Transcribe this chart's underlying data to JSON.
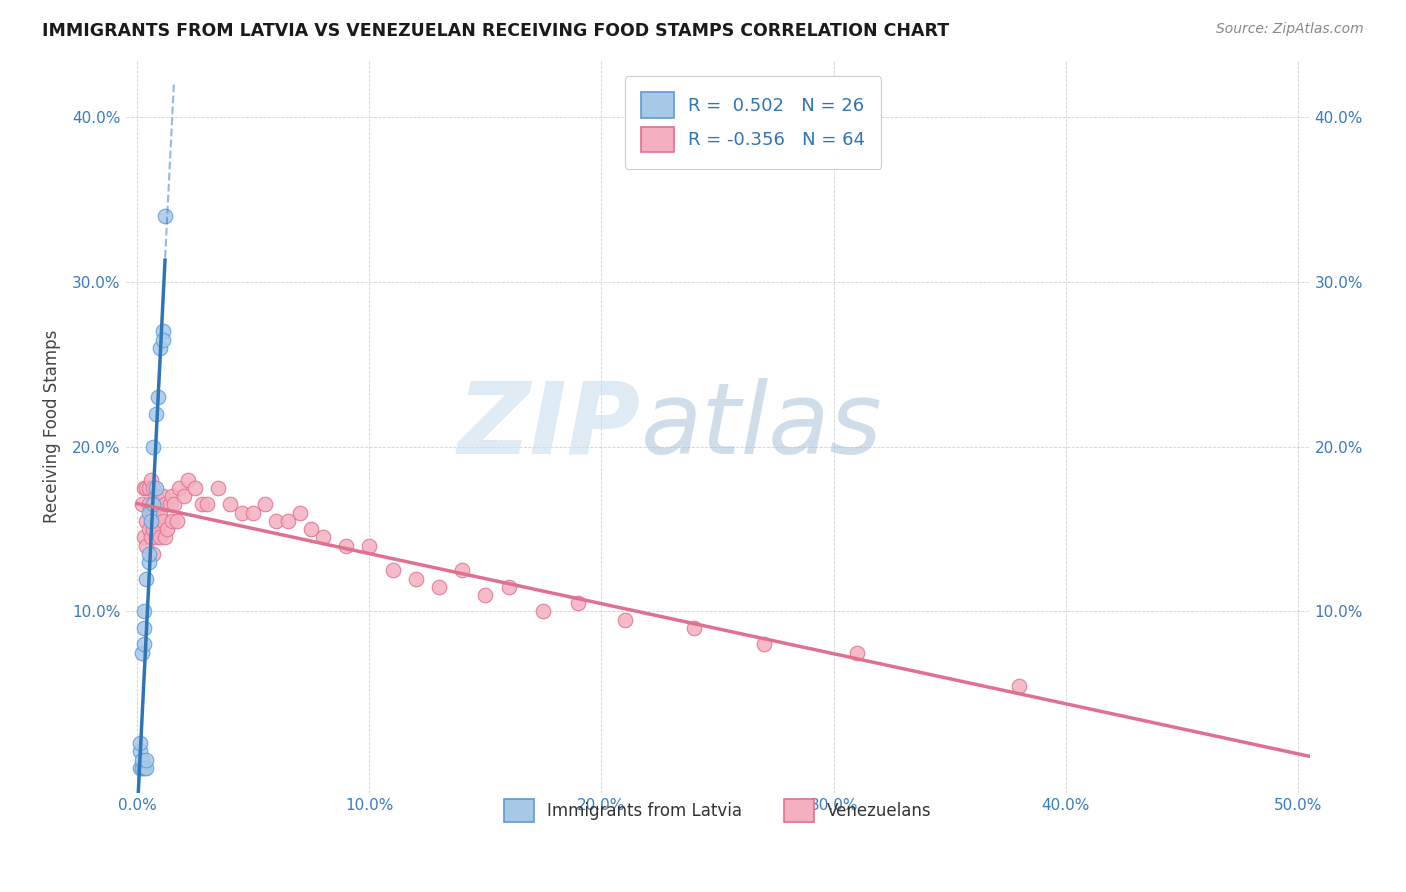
{
  "title": "IMMIGRANTS FROM LATVIA VS VENEZUELAN RECEIVING FOOD STAMPS CORRELATION CHART",
  "source": "Source: ZipAtlas.com",
  "ylabel": "Receiving Food Stamps",
  "xlim": [
    -0.005,
    0.505
  ],
  "ylim": [
    -0.01,
    0.435
  ],
  "xticks": [
    0.0,
    0.1,
    0.2,
    0.3,
    0.4,
    0.5
  ],
  "xtick_labels": [
    "0.0%",
    "10.0%",
    "20.0%",
    "30.0%",
    "40.0%",
    "50.0%"
  ],
  "yticks": [
    0.1,
    0.2,
    0.3,
    0.4
  ],
  "ytick_labels": [
    "10.0%",
    "20.0%",
    "30.0%",
    "40.0%"
  ],
  "latvia_color": "#a8c8e8",
  "venezuela_color": "#f4b0c0",
  "latvia_edge": "#5b9bd5",
  "venezuela_edge": "#e07090",
  "trendline_latvia_color": "#2e75b6",
  "trendline_venezuela_color": "#e07090",
  "r_latvia": 0.502,
  "n_latvia": 26,
  "r_venezuela": -0.356,
  "n_venezuela": 64,
  "legend_label_1": "Immigrants from Latvia",
  "legend_label_2": "Venezuelans",
  "latvia_x": [
    0.001,
    0.001,
    0.001,
    0.002,
    0.002,
    0.002,
    0.003,
    0.003,
    0.003,
    0.003,
    0.004,
    0.004,
    0.004,
    0.005,
    0.005,
    0.005,
    0.006,
    0.007,
    0.007,
    0.008,
    0.008,
    0.009,
    0.01,
    0.011,
    0.011,
    0.012
  ],
  "latvia_y": [
    0.005,
    0.015,
    0.02,
    0.005,
    0.01,
    0.075,
    0.005,
    0.08,
    0.09,
    0.1,
    0.005,
    0.01,
    0.12,
    0.13,
    0.135,
    0.16,
    0.155,
    0.165,
    0.2,
    0.175,
    0.22,
    0.23,
    0.26,
    0.27,
    0.265,
    0.34
  ],
  "latvia_outlier_x": [
    0.01
  ],
  "latvia_outlier_y": [
    0.34
  ],
  "venezuela_x": [
    0.002,
    0.003,
    0.003,
    0.004,
    0.004,
    0.004,
    0.005,
    0.005,
    0.005,
    0.006,
    0.006,
    0.006,
    0.007,
    0.007,
    0.007,
    0.007,
    0.008,
    0.008,
    0.008,
    0.009,
    0.009,
    0.01,
    0.01,
    0.011,
    0.011,
    0.012,
    0.012,
    0.013,
    0.014,
    0.015,
    0.015,
    0.016,
    0.017,
    0.018,
    0.02,
    0.022,
    0.025,
    0.028,
    0.03,
    0.035,
    0.04,
    0.045,
    0.05,
    0.055,
    0.06,
    0.065,
    0.07,
    0.075,
    0.08,
    0.09,
    0.1,
    0.11,
    0.12,
    0.13,
    0.14,
    0.15,
    0.16,
    0.175,
    0.19,
    0.21,
    0.24,
    0.27,
    0.31,
    0.38
  ],
  "venezuela_y": [
    0.165,
    0.145,
    0.175,
    0.14,
    0.155,
    0.175,
    0.15,
    0.165,
    0.175,
    0.145,
    0.16,
    0.18,
    0.135,
    0.15,
    0.16,
    0.175,
    0.145,
    0.155,
    0.17,
    0.15,
    0.165,
    0.145,
    0.16,
    0.155,
    0.17,
    0.145,
    0.165,
    0.15,
    0.165,
    0.155,
    0.17,
    0.165,
    0.155,
    0.175,
    0.17,
    0.18,
    0.175,
    0.165,
    0.165,
    0.175,
    0.165,
    0.16,
    0.16,
    0.165,
    0.155,
    0.155,
    0.16,
    0.15,
    0.145,
    0.14,
    0.14,
    0.125,
    0.12,
    0.115,
    0.125,
    0.11,
    0.115,
    0.1,
    0.105,
    0.095,
    0.09,
    0.08,
    0.075,
    0.055
  ]
}
